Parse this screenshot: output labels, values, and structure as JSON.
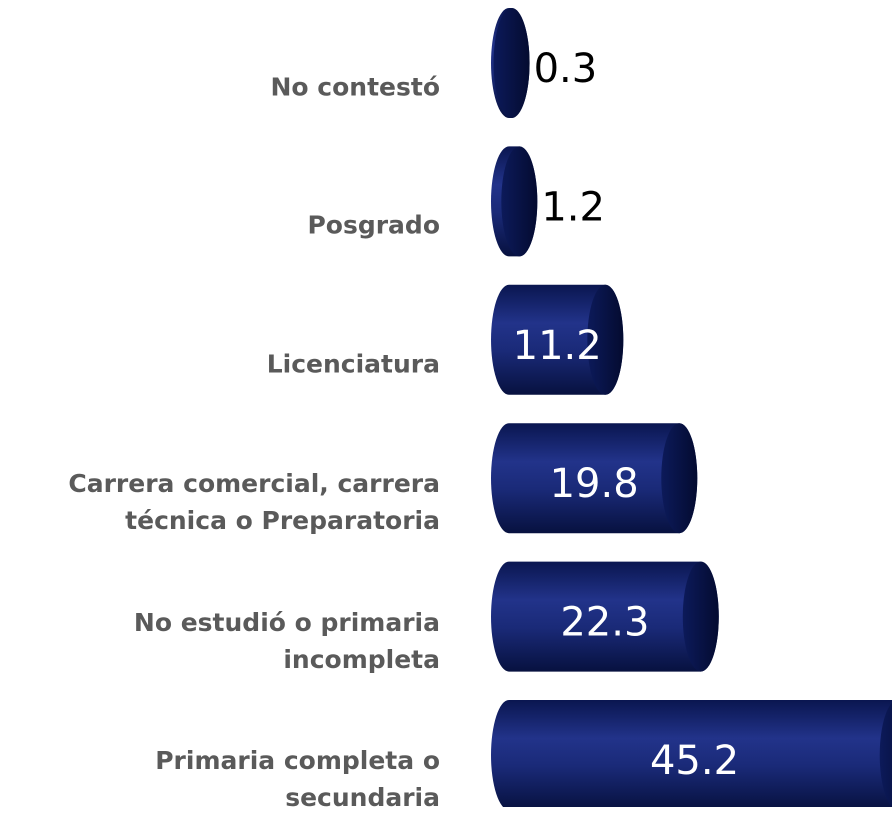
{
  "chart_data": {
    "type": "bar",
    "orientation": "horizontal",
    "categories": [
      "No contestó",
      "Posgrado",
      "Licenciatura",
      "Carrera comercial, carrera técnica o Preparatoria",
      "No estudió o primaria incompleta",
      "Primaria completa o secundaria"
    ],
    "values": [
      0.3,
      1.2,
      11.2,
      19.8,
      22.3,
      45.2
    ],
    "color": "#14246e"
  }
}
